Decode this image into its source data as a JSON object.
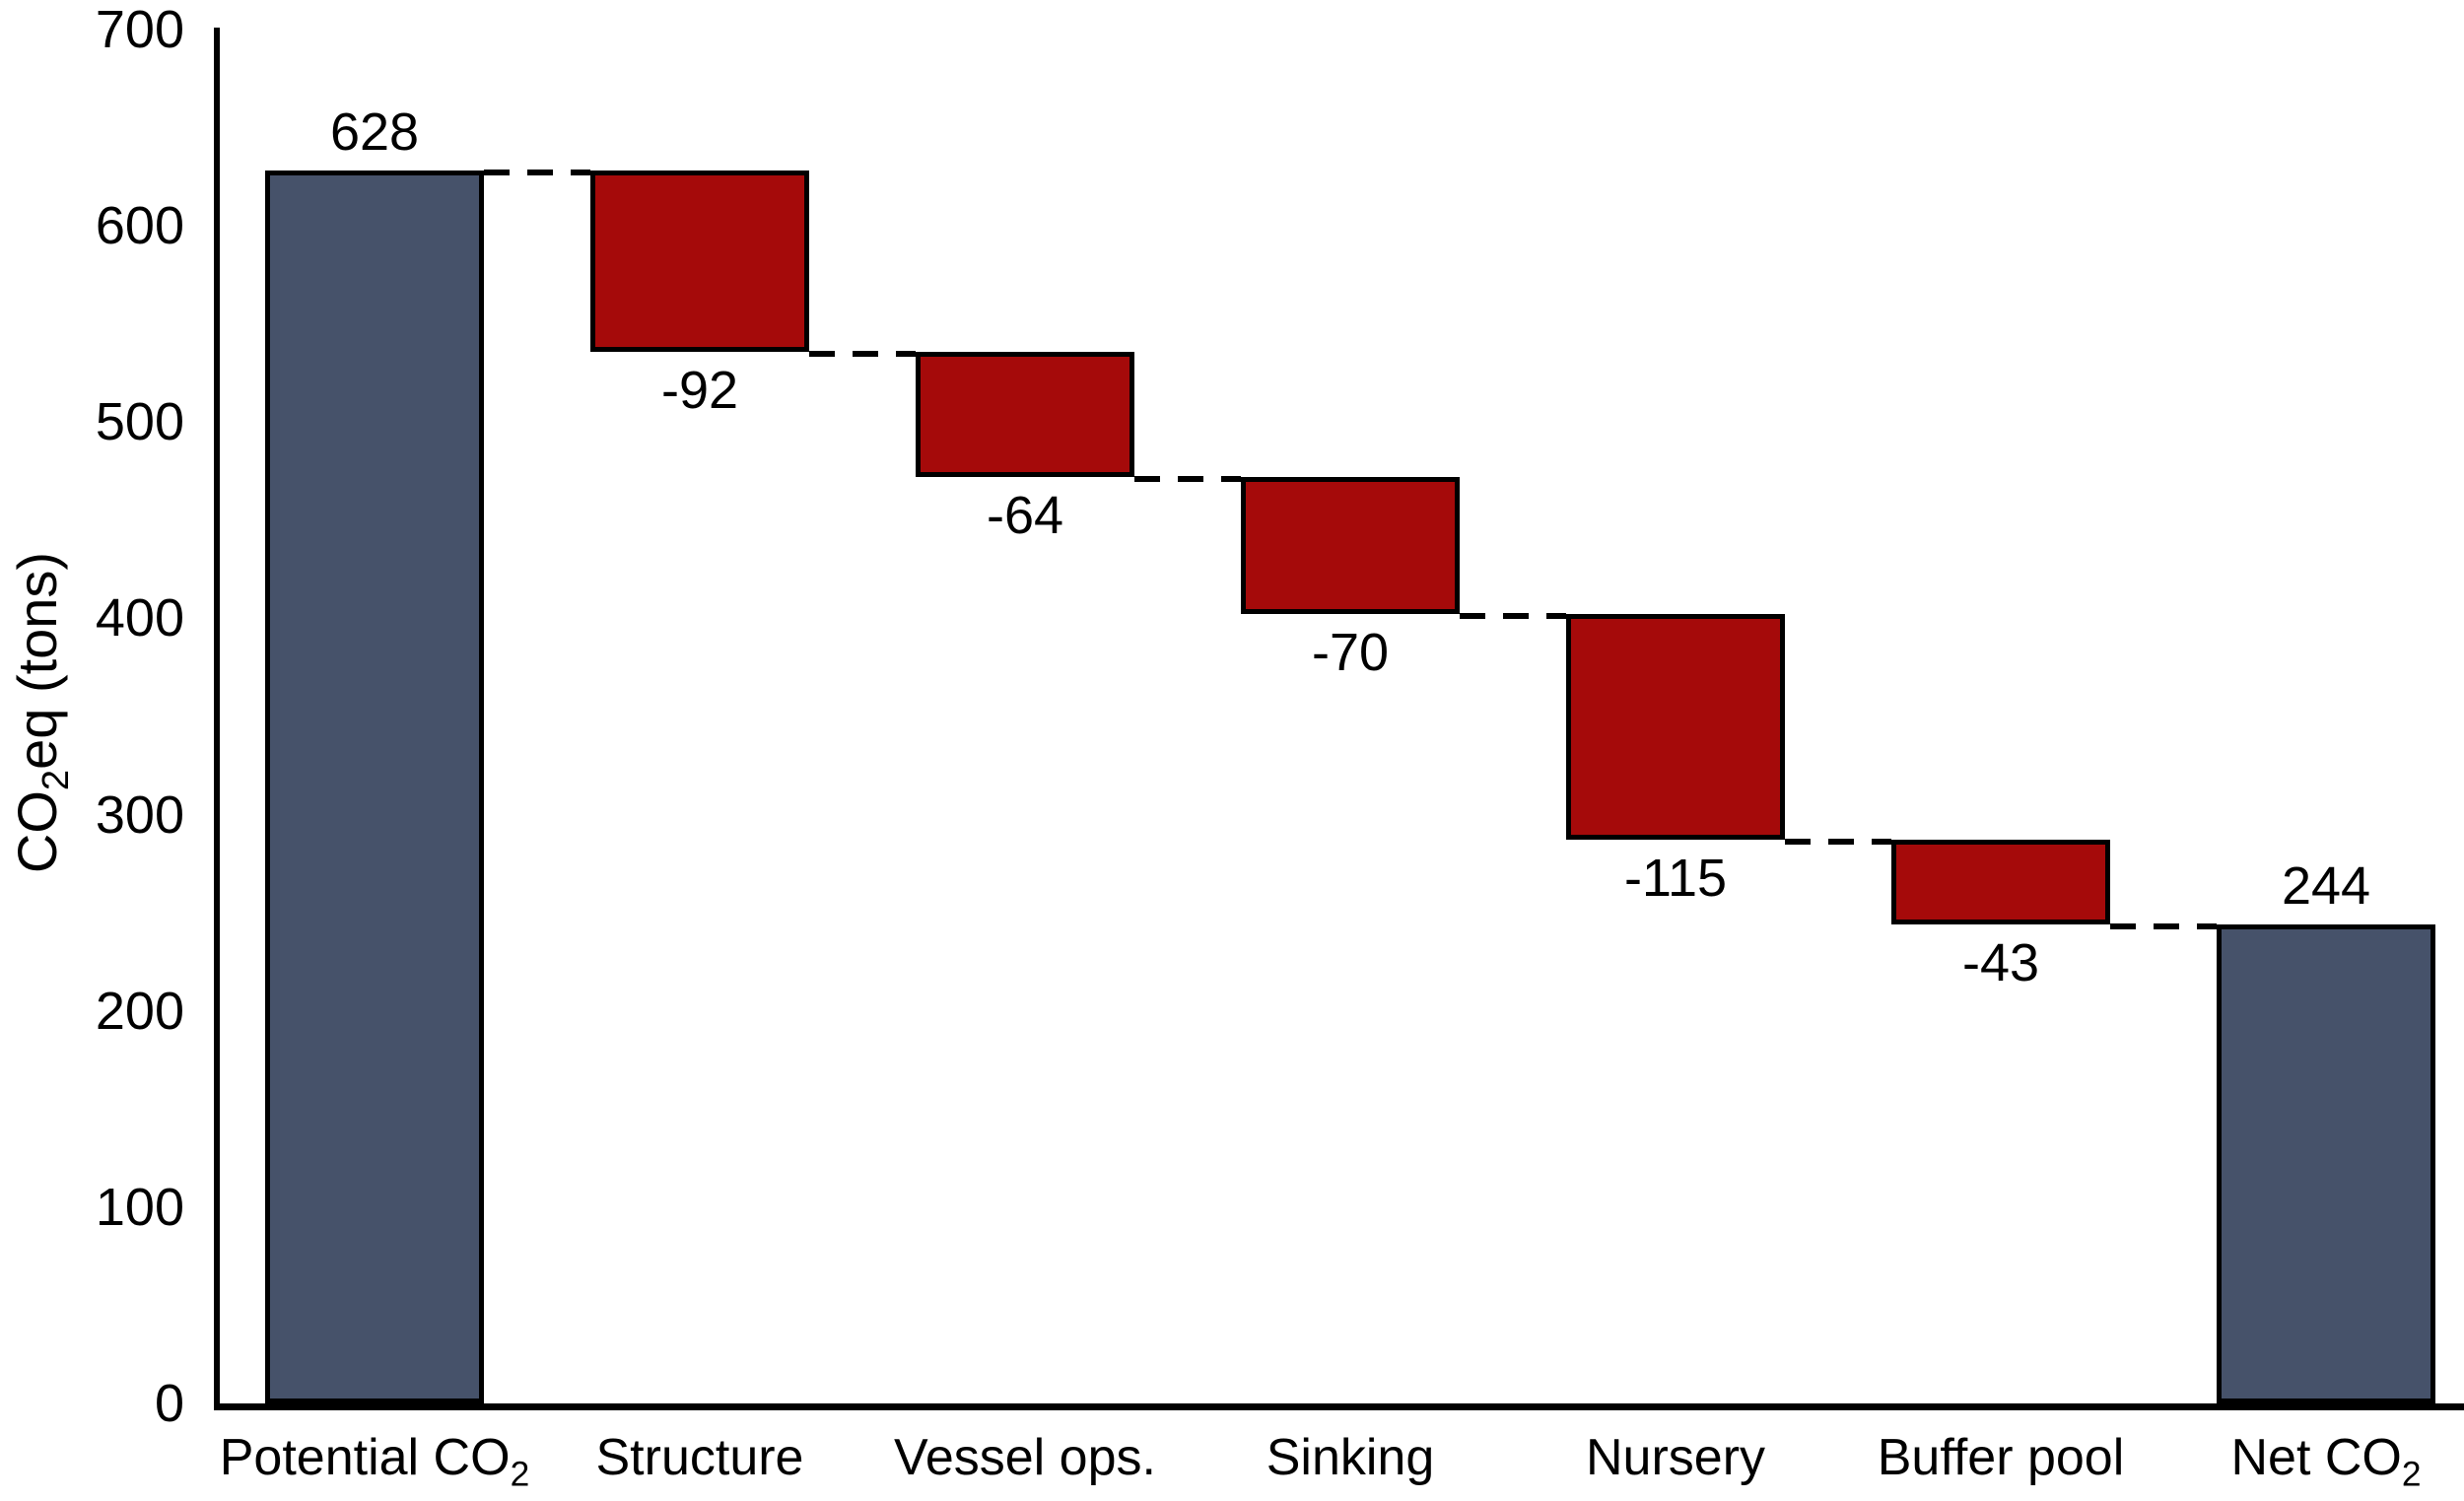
{
  "chart_data": {
    "type": "bar",
    "subtype": "waterfall",
    "title": "",
    "ylabel_parts": {
      "pre": "CO",
      "sub": "2",
      "post": "eq (tons)"
    },
    "ylim": [
      0,
      700
    ],
    "yticks": [
      0,
      100,
      200,
      300,
      400,
      500,
      600,
      700
    ],
    "grid": false,
    "legend": "none",
    "categories": [
      "Potential CO2",
      "Structure",
      "Vessel ops.",
      "Sinking",
      "Nursery",
      "Buffer pool",
      "Net CO2"
    ],
    "bars": [
      {
        "label_pre": "Potential CO",
        "label_sub": "2",
        "value": 628,
        "display": "628",
        "start": 0,
        "end": 628,
        "kind": "total",
        "value_label_position": "above"
      },
      {
        "label_pre": "Structure",
        "label_sub": "",
        "value": -92,
        "display": "-92",
        "start": 628,
        "end": 536,
        "kind": "decrease",
        "value_label_position": "below"
      },
      {
        "label_pre": "Vessel ops.",
        "label_sub": "",
        "value": -64,
        "display": "-64",
        "start": 536,
        "end": 472,
        "kind": "decrease",
        "value_label_position": "below"
      },
      {
        "label_pre": "Sinking",
        "label_sub": "",
        "value": -70,
        "display": "-70",
        "start": 472,
        "end": 402,
        "kind": "decrease",
        "value_label_position": "below"
      },
      {
        "label_pre": "Nursery",
        "label_sub": "",
        "value": -115,
        "display": "-115",
        "start": 402,
        "end": 287,
        "kind": "decrease",
        "value_label_position": "below"
      },
      {
        "label_pre": "Buffer pool",
        "label_sub": "",
        "value": -43,
        "display": "-43",
        "start": 287,
        "end": 244,
        "kind": "decrease",
        "value_label_position": "below"
      },
      {
        "label_pre": "Net CO",
        "label_sub": "2",
        "value": 244,
        "display": "244",
        "start": 0,
        "end": 244,
        "kind": "total",
        "value_label_position": "above"
      }
    ],
    "connector_levels": [
      628,
      536,
      472,
      402,
      287,
      244
    ],
    "colors": {
      "total_fill": "#46526A",
      "decrease_fill": "#A50A0A",
      "bar_border": "#000000",
      "axis": "#000000",
      "text": "#000000",
      "connector": "#000000",
      "background": "#FFFFFF"
    }
  }
}
